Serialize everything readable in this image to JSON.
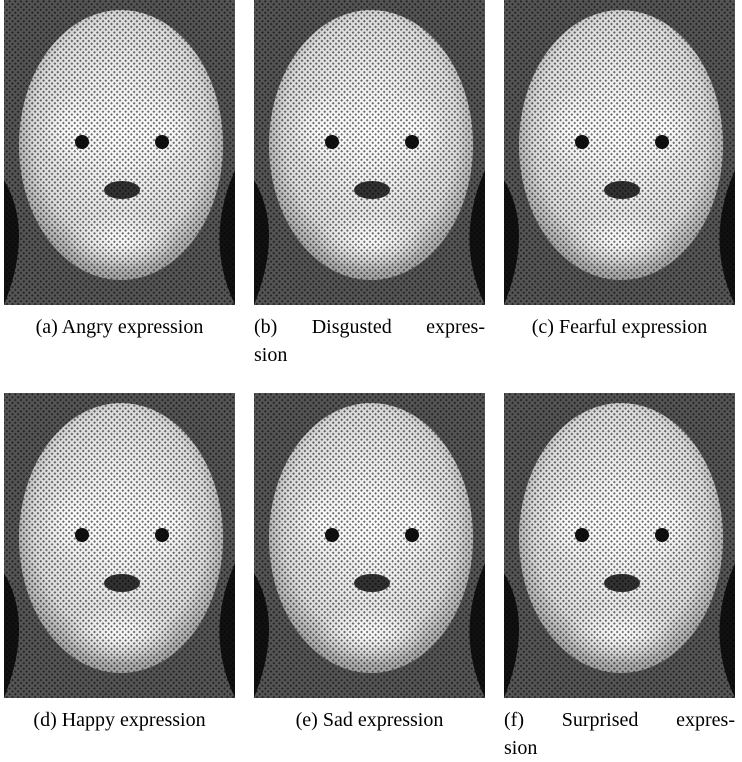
{
  "figures": [
    {
      "caption": [
        "(a) Angry expression"
      ]
    },
    {
      "caption": [
        "(b) Disgusted expres-",
        "sion"
      ]
    },
    {
      "caption": [
        "(c) Fearful expression"
      ]
    },
    {
      "caption": [
        "(d) Happy expression"
      ]
    },
    {
      "caption": [
        "(e) Sad expression"
      ]
    },
    {
      "caption": [
        "(f) Surprised expres-",
        "sion"
      ]
    }
  ]
}
